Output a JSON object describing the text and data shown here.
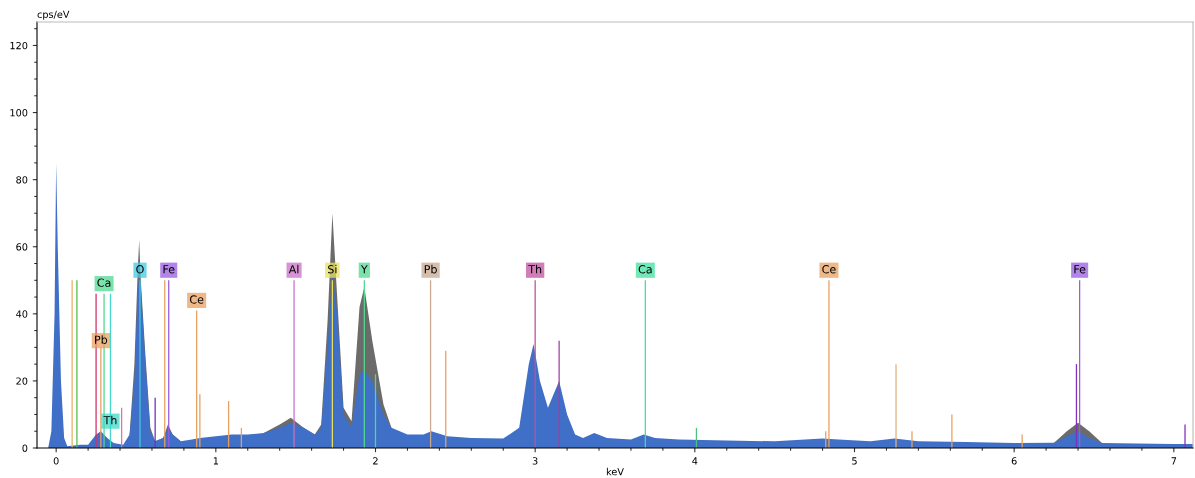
{
  "chart_data": {
    "type": "area",
    "xlabel": "keV",
    "ylabel": "cps/eV",
    "xlim": [
      -0.12,
      7.12
    ],
    "ylim": [
      0,
      127
    ],
    "xticks": [
      0,
      1,
      2,
      3,
      4,
      5,
      6,
      7
    ],
    "yticks": [
      0,
      20,
      40,
      60,
      80,
      100,
      120
    ],
    "grid": false,
    "legend": false,
    "series": [
      {
        "color": "#6b6b6b",
        "x": [
          0.46,
          0.49,
          0.51,
          0.52,
          0.53,
          0.56,
          0.59,
          0.62,
          0.67,
          0.7,
          0.73,
          0.78
        ],
        "values": [
          4,
          25,
          52,
          62,
          50,
          27,
          6,
          2,
          3,
          7,
          4,
          2
        ]
      },
      {
        "color": "#6b6b6b",
        "x": [
          1.3,
          1.4,
          1.47,
          1.55,
          1.62,
          1.66,
          1.7,
          1.73,
          1.76,
          1.8,
          1.85,
          1.9,
          1.93,
          1.98,
          2.05,
          2.1
        ],
        "values": [
          4.5,
          7,
          9,
          6,
          4,
          7,
          38,
          70,
          45,
          12,
          8,
          42,
          48,
          32,
          13,
          6
        ]
      },
      {
        "color": "#6b6b6b",
        "x": [
          6.25,
          6.33,
          6.4,
          6.47,
          6.55
        ],
        "values": [
          1.6,
          5,
          7.5,
          5,
          1.5
        ]
      },
      {
        "color": "#3f6fc6",
        "x": [
          -0.12,
          -0.05,
          -0.03,
          -0.01,
          0,
          0.01,
          0.03,
          0.05,
          0.07,
          0.15,
          0.2,
          0.25,
          0.28,
          0.32,
          0.36,
          0.42,
          0.46,
          0.49,
          0.51,
          0.52,
          0.53,
          0.56,
          0.59,
          0.62,
          0.67,
          0.7,
          0.73,
          0.78,
          0.85,
          0.9,
          1.0,
          1.1,
          1.2,
          1.3,
          1.4,
          1.47,
          1.55,
          1.62,
          1.66,
          1.7,
          1.73,
          1.76,
          1.8,
          1.85,
          1.9,
          1.93,
          1.98,
          2.05,
          2.1,
          2.2,
          2.3,
          2.35,
          2.45,
          2.6,
          2.8,
          2.9,
          2.96,
          2.99,
          3.03,
          3.08,
          3.15,
          3.2,
          3.25,
          3.3,
          3.37,
          3.45,
          3.6,
          3.68,
          3.75,
          3.9,
          4.2,
          4.5,
          4.8,
          4.9,
          5.1,
          5.25,
          5.4,
          5.7,
          6.0,
          6.25,
          6.33,
          6.4,
          6.47,
          6.55,
          7.0,
          7.12
        ],
        "values": [
          0,
          0,
          5,
          40,
          85,
          60,
          20,
          3,
          0.5,
          1,
          1,
          4,
          5,
          3,
          1.5,
          1,
          4,
          20,
          45,
          52,
          48,
          25,
          5,
          2,
          3,
          6,
          4,
          2,
          2.5,
          3,
          3.5,
          4,
          4,
          4.5,
          6,
          7.5,
          6,
          4,
          6,
          30,
          52,
          40,
          10,
          6,
          22,
          23,
          20,
          10,
          6,
          4,
          4,
          5,
          3.5,
          3,
          2.8,
          6,
          25,
          31,
          20,
          12,
          20,
          10,
          4,
          3,
          4.5,
          3,
          2.5,
          4,
          3,
          2.5,
          2.2,
          2,
          2.8,
          2.5,
          2,
          2.8,
          2,
          1.8,
          1.5,
          1.6,
          3.5,
          5,
          3,
          1.5,
          1.2,
          1.2
        ]
      },
      {
        "type": "bar",
        "x": [
          0.1,
          0.13,
          0.25,
          0.28,
          0.3,
          0.34,
          0.41,
          0.525,
          0.62,
          0.68,
          0.705,
          0.88,
          0.9,
          1.08,
          1.16,
          1.49,
          1.73,
          1.93,
          2.0,
          2.345,
          2.44,
          3.0,
          3.15,
          3.69,
          4.01,
          4.82,
          4.84,
          5.26,
          5.36,
          5.61,
          6.05,
          6.39,
          6.41,
          7.07
        ],
        "values": [
          50,
          50,
          46,
          30,
          46,
          46,
          12,
          50,
          15,
          50,
          50,
          41,
          16,
          14,
          6,
          50,
          50,
          50,
          22,
          50,
          29,
          50,
          32,
          50,
          6,
          5,
          50,
          25,
          5,
          10,
          4,
          25,
          50,
          7
        ],
        "colors": [
          "#e8b060",
          "#50c050",
          "#d0306a",
          "#e8a060",
          "#50d890",
          "#40d8c8",
          "#e070b0",
          "#40c8e0",
          "#7030c0",
          "#e8a060",
          "#9a5ce0",
          "#e8a060",
          "#e8a060",
          "#e8a060",
          "#e8a060",
          "#c870c8",
          "#e8e060",
          "#50d890",
          "#50d890",
          "#c8a890",
          "#e8a060",
          "#c050a0",
          "#a040a0",
          "#40e0a0",
          "#50c080",
          "#e8a060",
          "#e8a060",
          "#e0b080",
          "#e8a060",
          "#e8a060",
          "#e8a060",
          "#8030c0",
          "#9a5ce0",
          "#8030c0"
        ]
      }
    ],
    "annotations": [
      {
        "text": "Ca",
        "x": 0.3,
        "y": 49
      },
      {
        "text": "Pb",
        "x": 0.28,
        "y": 32
      },
      {
        "text": "Th",
        "x": 0.34,
        "y": 8
      },
      {
        "text": "O",
        "x": 0.525,
        "y": 53
      },
      {
        "text": "Fe",
        "x": 0.705,
        "y": 53
      },
      {
        "text": "Ce",
        "x": 0.88,
        "y": 44
      },
      {
        "text": "Al",
        "x": 1.49,
        "y": 53
      },
      {
        "text": "Si",
        "x": 1.73,
        "y": 53
      },
      {
        "text": "Y",
        "x": 1.93,
        "y": 53
      },
      {
        "text": "Pb",
        "x": 2.345,
        "y": 53
      },
      {
        "text": "Th",
        "x": 3.0,
        "y": 53
      },
      {
        "text": "Ca",
        "x": 3.69,
        "y": 53
      },
      {
        "text": "Ce",
        "x": 4.84,
        "y": 53
      },
      {
        "text": "Fe",
        "x": 6.41,
        "y": 53
      }
    ]
  }
}
